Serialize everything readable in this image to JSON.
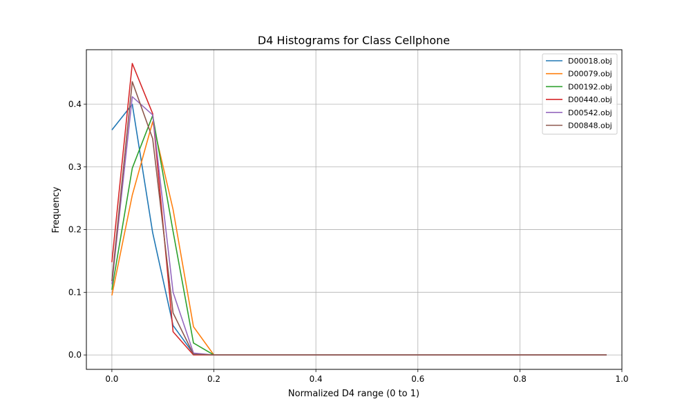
{
  "chart_data": {
    "type": "line",
    "title": "D4 Histograms for Class Cellphone",
    "xlabel": "Normalized D4 range (0 to 1)",
    "ylabel": "Frequency",
    "xlim": [
      -0.05,
      1.0
    ],
    "ylim": [
      -0.023,
      0.487
    ],
    "xticks": [
      0.0,
      0.2,
      0.4,
      0.6,
      0.8,
      1.0
    ],
    "xtick_labels": [
      "0.0",
      "0.2",
      "0.4",
      "0.6",
      "0.8",
      "1.0"
    ],
    "yticks": [
      0.0,
      0.1,
      0.2,
      0.3,
      0.4
    ],
    "ytick_labels": [
      "0.0",
      "0.1",
      "0.2",
      "0.3",
      "0.4"
    ],
    "grid": true,
    "legend_position": "top-right",
    "x": [
      0.0,
      0.04,
      0.08,
      0.12,
      0.16,
      0.2,
      0.24,
      0.28,
      0.32,
      0.36,
      0.4,
      0.44,
      0.48,
      0.52,
      0.56,
      0.6,
      0.64,
      0.68,
      0.72,
      0.76,
      0.8,
      0.84,
      0.88,
      0.92,
      0.97
    ],
    "series": [
      {
        "name": "D00018.obj",
        "color": "#1f77b4",
        "values": [
          0.359,
          0.4,
          0.195,
          0.047,
          0.002,
          0,
          0,
          0,
          0,
          0,
          0,
          0,
          0,
          0,
          0,
          0,
          0,
          0,
          0,
          0,
          0,
          0,
          0,
          0,
          0
        ]
      },
      {
        "name": "D00079.obj",
        "color": "#ff7f0e",
        "values": [
          0.095,
          0.255,
          0.372,
          0.232,
          0.045,
          0,
          0,
          0,
          0,
          0,
          0,
          0,
          0,
          0,
          0,
          0,
          0,
          0,
          0,
          0,
          0,
          0,
          0,
          0,
          0
        ]
      },
      {
        "name": "D00192.obj",
        "color": "#2ca02c",
        "values": [
          0.104,
          0.298,
          0.382,
          0.197,
          0.019,
          0,
          0,
          0,
          0,
          0,
          0,
          0,
          0,
          0,
          0,
          0,
          0,
          0,
          0,
          0,
          0,
          0,
          0,
          0,
          0
        ]
      },
      {
        "name": "D00440.obj",
        "color": "#d62728",
        "values": [
          0.148,
          0.465,
          0.385,
          0.037,
          0.0,
          0,
          0,
          0,
          0,
          0,
          0,
          0,
          0,
          0,
          0,
          0,
          0,
          0,
          0,
          0,
          0,
          0,
          0,
          0,
          0
        ]
      },
      {
        "name": "D00542.obj",
        "color": "#9467bd",
        "values": [
          0.113,
          0.412,
          0.383,
          0.1,
          0.003,
          0,
          0,
          0,
          0,
          0,
          0,
          0,
          0,
          0,
          0,
          0,
          0,
          0,
          0,
          0,
          0,
          0,
          0,
          0,
          0
        ]
      },
      {
        "name": "D00848.obj",
        "color": "#8c564b",
        "values": [
          0.118,
          0.436,
          0.345,
          0.067,
          0.001,
          0,
          0,
          0,
          0,
          0,
          0,
          0,
          0,
          0,
          0,
          0,
          0,
          0,
          0,
          0,
          0,
          0,
          0,
          0,
          0
        ]
      }
    ]
  }
}
